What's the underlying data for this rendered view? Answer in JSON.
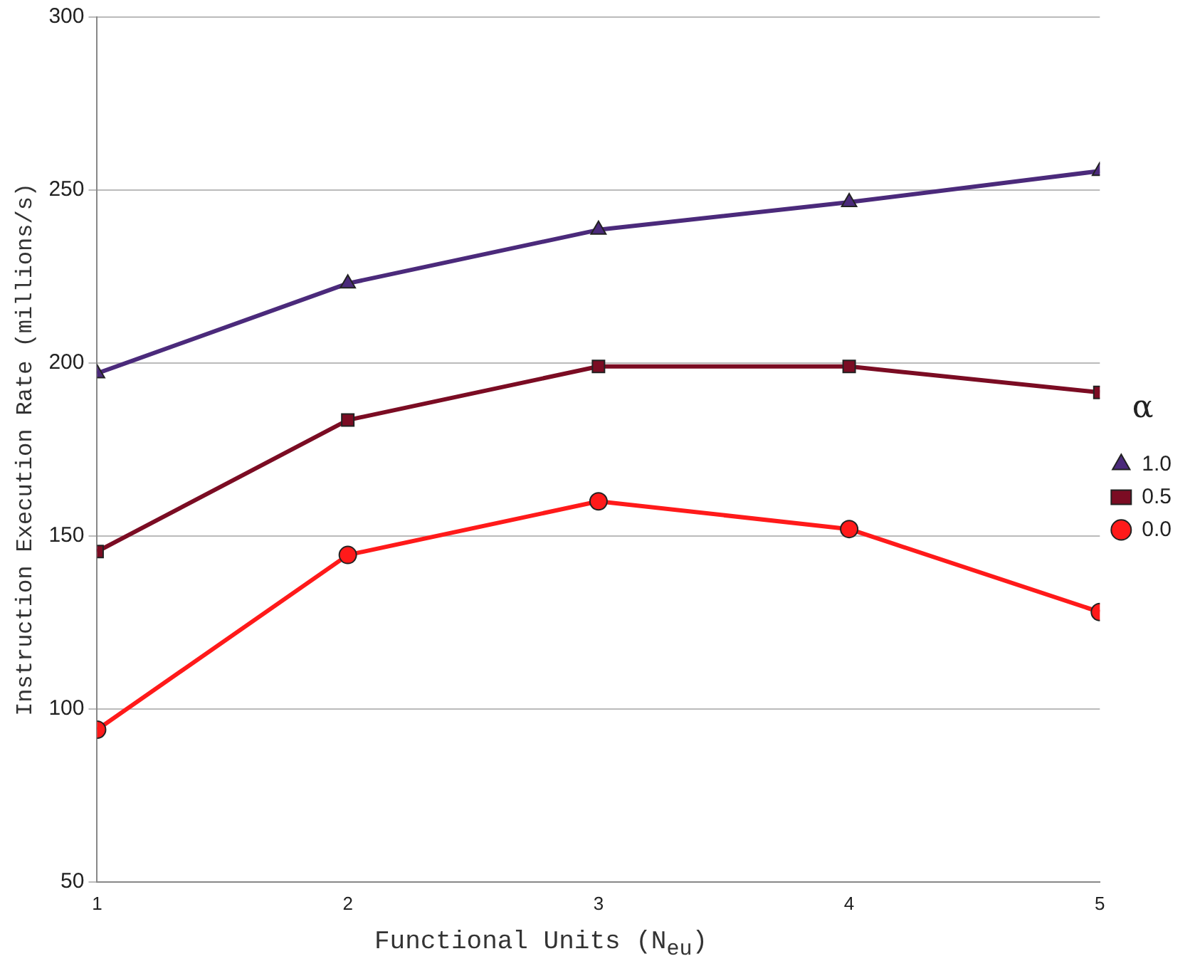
{
  "chart_data": {
    "type": "line",
    "xlabel": "Functional Units (N$_{eu}$)",
    "ylabel": "Instruction Execution Rate (millions/s)",
    "legend_title": "α",
    "legend": "right",
    "grid": "y",
    "line_style": "solid",
    "x": [
      1,
      2,
      3,
      4,
      5
    ],
    "xlim": [
      1,
      5
    ],
    "xticks": [
      1,
      2,
      3,
      4,
      5
    ],
    "ylim": [
      50,
      300
    ],
    "yticks": [
      50,
      100,
      150,
      200,
      250,
      300
    ],
    "series": [
      {
        "name": "1.0",
        "color": "#4b2a7b",
        "marker": "triangle",
        "values": [
          197,
          223,
          238.5,
          246.5,
          255.5
        ]
      },
      {
        "name": "0.5",
        "color": "#7b0c23",
        "marker": "square",
        "values": [
          145.5,
          183.5,
          199,
          199,
          191.5
        ]
      },
      {
        "name": "0.0",
        "color": "#ff1a1a",
        "marker": "circle",
        "values": [
          94,
          144.5,
          160,
          152,
          128
        ]
      }
    ]
  }
}
